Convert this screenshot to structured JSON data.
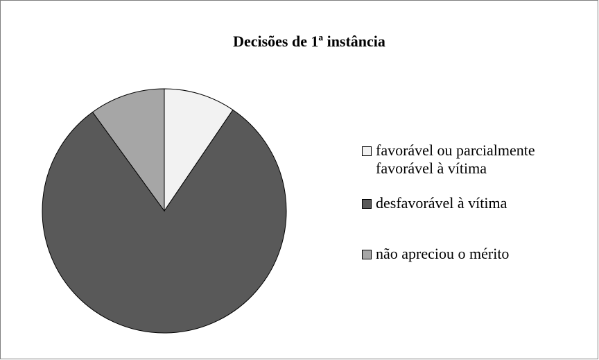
{
  "chart_data": {
    "type": "pie",
    "title": "Decisões de 1ª instância",
    "categories": [
      "favorável ou parcialmente favorável à vítima",
      "desfavorável à vítima",
      "não apreciou o mérito"
    ],
    "values": [
      9.5,
      80.5,
      10
    ],
    "colors": [
      "#f2f2f2",
      "#595959",
      "#a6a6a6"
    ],
    "legend": "right"
  }
}
